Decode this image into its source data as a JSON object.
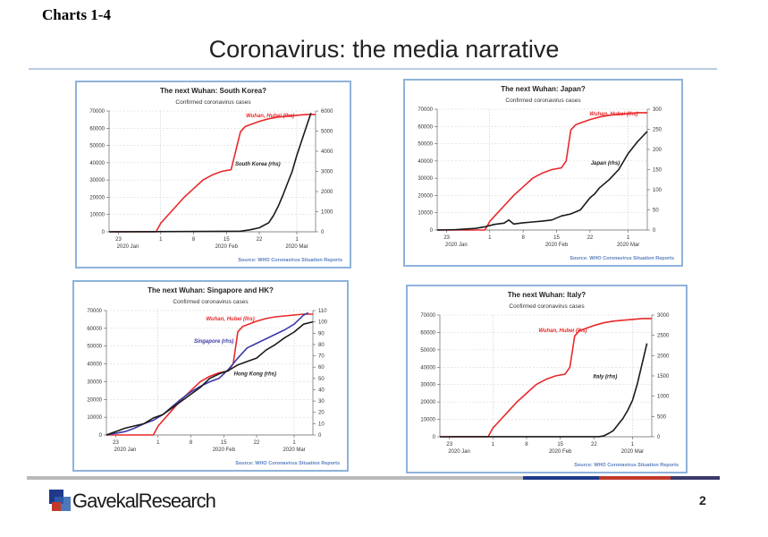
{
  "page_label": "Charts 1-4",
  "slide_title": "Coronavirus: the media narrative",
  "page_number": "2",
  "logo": {
    "gavekal": "Gavekal",
    "research": "Research"
  },
  "colors": {
    "wuhan": "#e8292b",
    "country": "#1a1a1a",
    "singapore": "#3a3aa8",
    "source": "#5b7fc0",
    "panel_border": "#8fb3da",
    "band_blue": "#1f3a8a",
    "band_red": "#c0392b",
    "band_grey": "#9a9a9a"
  },
  "x_ticks": [
    "23",
    "1",
    "8",
    "15",
    "22",
    "1"
  ],
  "x_month_labels": [
    "2020 Jan",
    "2020 Feb",
    "2020 Mar"
  ],
  "chart_data": [
    {
      "type": "line",
      "title": "The next Wuhan: South Korea?",
      "subtitle": "Confirmed coronavirus cases",
      "source": "Source: WHO Coronavirus Situation Reports",
      "left_axis": {
        "ylim": [
          0,
          70000
        ],
        "ticks": [
          "0",
          "10000",
          "20000",
          "30000",
          "40000",
          "50000",
          "60000",
          "70000"
        ]
      },
      "right_axis": {
        "ylim": [
          0,
          6000
        ],
        "ticks": [
          "0",
          "1000",
          "2000",
          "3000",
          "4000",
          "5000",
          "6000"
        ]
      },
      "x_range": [
        0,
        44
      ],
      "series": [
        {
          "name": "Wuhan, Hubei (lhs)",
          "axis": "left",
          "color": "#e8292b",
          "x": [
            0,
            10,
            11,
            12,
            14,
            16,
            18,
            20,
            22,
            24,
            26,
            28,
            29,
            30,
            32,
            34,
            36,
            38,
            40,
            42,
            44
          ],
          "values": [
            0,
            0,
            5000,
            8000,
            14000,
            20000,
            25000,
            30000,
            33000,
            35000,
            36000,
            58000,
            61000,
            62000,
            64000,
            65500,
            66500,
            67000,
            67500,
            68000,
            68000
          ]
        },
        {
          "name": "South Korea (rhs)",
          "axis": "right",
          "color": "#1a1a1a",
          "x": [
            0,
            10,
            20,
            26,
            28,
            30,
            32,
            34,
            35,
            36,
            37,
            38,
            39,
            40,
            41,
            42,
            43
          ],
          "values": [
            0,
            10,
            20,
            25,
            30,
            100,
            200,
            450,
            800,
            1250,
            1800,
            2400,
            3000,
            3800,
            4500,
            5200,
            5900
          ]
        }
      ]
    },
    {
      "type": "line",
      "title": "The next Wuhan: Japan?",
      "subtitle": "Confirmed coronavirus cases",
      "source": "Source: WHO Coronavirus Situation Reports",
      "left_axis": {
        "ylim": [
          0,
          70000
        ],
        "ticks": [
          "0",
          "10000",
          "20000",
          "30000",
          "40000",
          "50000",
          "60000",
          "70000"
        ]
      },
      "right_axis": {
        "ylim": [
          0,
          300
        ],
        "ticks": [
          "0",
          "50",
          "100",
          "150",
          "200",
          "250",
          "300"
        ]
      },
      "x_range": [
        0,
        44
      ],
      "series": [
        {
          "name": "Wuhan, Hubei (lhs)",
          "axis": "left",
          "color": "#e8292b",
          "x": [
            0,
            10,
            11,
            12,
            14,
            16,
            18,
            20,
            22,
            24,
            26,
            27,
            28,
            29,
            30,
            32,
            34,
            36,
            38,
            40,
            42,
            44
          ],
          "values": [
            0,
            0,
            5000,
            8000,
            14000,
            20000,
            25000,
            30000,
            33000,
            35000,
            36000,
            40000,
            58000,
            61000,
            62000,
            64000,
            65500,
            66500,
            67000,
            67500,
            68000,
            68000
          ]
        },
        {
          "name": "Japan (rhs)",
          "axis": "right",
          "color": "#1a1a1a",
          "x": [
            0,
            4,
            8,
            10,
            12,
            14,
            15,
            16,
            18,
            20,
            22,
            24,
            26,
            28,
            30,
            32,
            33,
            34,
            36,
            38,
            40,
            42,
            44
          ],
          "values": [
            0,
            1,
            4,
            8,
            14,
            17,
            25,
            15,
            18,
            20,
            22,
            25,
            35,
            40,
            50,
            80,
            90,
            105,
            125,
            150,
            190,
            220,
            245
          ]
        }
      ]
    },
    {
      "type": "line",
      "title": "The next Wuhan: Singapore and HK?",
      "subtitle": "Confirmed coronavirus cases",
      "source": "Source: WHO Coronavirus Situation Reports",
      "left_axis": {
        "ylim": [
          0,
          70000
        ],
        "ticks": [
          "0",
          "10000",
          "20000",
          "30000",
          "40000",
          "50000",
          "60000",
          "70000"
        ]
      },
      "right_axis": {
        "ylim": [
          0,
          110
        ],
        "ticks": [
          "0",
          "10",
          "20",
          "30",
          "40",
          "50",
          "60",
          "70",
          "80",
          "90",
          "100",
          "110"
        ]
      },
      "x_range": [
        0,
        44
      ],
      "series": [
        {
          "name": "Wuhan, Hubei (lhs)",
          "axis": "left",
          "color": "#e8292b",
          "x": [
            0,
            10,
            11,
            12,
            14,
            16,
            18,
            20,
            22,
            24,
            26,
            27,
            28,
            29,
            30,
            32,
            34,
            36,
            38,
            40,
            42,
            44
          ],
          "values": [
            0,
            0,
            5000,
            8000,
            14000,
            20000,
            25000,
            30000,
            33000,
            35000,
            36000,
            40000,
            58000,
            61000,
            62000,
            64000,
            65500,
            66500,
            67000,
            67500,
            68000,
            68000
          ]
        },
        {
          "name": "Singapore (rhs)",
          "axis": "right",
          "color": "#3a3aa8",
          "x": [
            0,
            4,
            6,
            8,
            10,
            12,
            14,
            16,
            18,
            20,
            22,
            24,
            26,
            28,
            30,
            32,
            34,
            36,
            38,
            40,
            42,
            43
          ],
          "values": [
            0,
            3,
            6,
            10,
            13,
            18,
            25,
            32,
            38,
            43,
            47,
            50,
            58,
            68,
            77,
            81,
            85,
            89,
            93,
            98,
            106,
            108
          ]
        },
        {
          "name": "Hong Kong (rhs)",
          "axis": "right",
          "color": "#1a1a1a",
          "x": [
            0,
            2,
            4,
            6,
            8,
            10,
            12,
            14,
            16,
            18,
            20,
            22,
            24,
            26,
            28,
            30,
            32,
            34,
            36,
            38,
            40,
            42,
            44
          ],
          "values": [
            0,
            3,
            6,
            8,
            10,
            15,
            18,
            24,
            30,
            36,
            42,
            50,
            54,
            57,
            62,
            65,
            68,
            75,
            80,
            86,
            91,
            98,
            100
          ]
        }
      ]
    },
    {
      "type": "line",
      "title": "The next Wuhan: Italy?",
      "subtitle": "Confirmed coronavirus cases",
      "source": "Source: WHO Coronavirus Situation Reports",
      "left_axis": {
        "ylim": [
          0,
          70000
        ],
        "ticks": [
          "0",
          "10000",
          "20000",
          "30000",
          "40000",
          "50000",
          "60000",
          "70000"
        ]
      },
      "right_axis": {
        "ylim": [
          0,
          3000
        ],
        "ticks": [
          "0",
          "500",
          "1000",
          "1500",
          "2000",
          "2500",
          "3000"
        ]
      },
      "x_range": [
        0,
        44
      ],
      "series": [
        {
          "name": "Wuhan, Hubei (lhs)",
          "axis": "left",
          "color": "#e8292b",
          "x": [
            0,
            10,
            11,
            12,
            14,
            16,
            18,
            20,
            22,
            24,
            26,
            27,
            28,
            29,
            30,
            32,
            34,
            36,
            38,
            40,
            42,
            44
          ],
          "values": [
            0,
            0,
            5000,
            8000,
            14000,
            20000,
            25000,
            30000,
            33000,
            35000,
            36000,
            40000,
            58000,
            61000,
            62000,
            64000,
            65500,
            66500,
            67000,
            67500,
            68000,
            68000
          ]
        },
        {
          "name": "Italy (rhs)",
          "axis": "right",
          "color": "#1a1a1a",
          "x": [
            0,
            10,
            20,
            30,
            33,
            34,
            35,
            36,
            37,
            38,
            39,
            40,
            41,
            42,
            43
          ],
          "values": [
            0,
            2,
            3,
            3,
            3,
            20,
            80,
            150,
            300,
            450,
            650,
            900,
            1300,
            1800,
            2300
          ]
        }
      ]
    }
  ]
}
